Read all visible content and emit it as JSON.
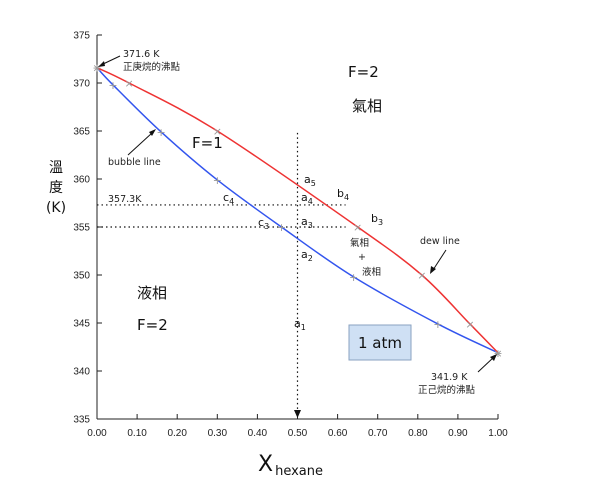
{
  "chart_data": {
    "type": "line",
    "xlabel": "X",
    "xlabel_sub": "hexane",
    "ylabel": [
      "溫",
      "度",
      "(K)"
    ],
    "xlim": [
      0,
      1
    ],
    "ylim": [
      335,
      375
    ],
    "x_ticks": [
      "0.00",
      "0.10",
      "0.20",
      "0.30",
      "0.40",
      "0.50",
      "0.60",
      "0.70",
      "0.80",
      "0.90",
      "1.00"
    ],
    "y_ticks": [
      "335",
      "340",
      "345",
      "350",
      "355",
      "360",
      "365",
      "370",
      "375"
    ],
    "series": [
      {
        "name": "bubble line",
        "color": "#3355ee",
        "x": [
          0.0,
          0.04,
          0.16,
          0.3,
          0.46,
          0.64,
          0.85,
          1.0
        ],
        "y": [
          371.6,
          369.8,
          364.9,
          359.9,
          355.0,
          349.8,
          344.9,
          341.9
        ],
        "marker": "+"
      },
      {
        "name": "dew line",
        "color": "#ee3333",
        "x": [
          0.0,
          0.08,
          0.3,
          0.65,
          0.81,
          0.93,
          1.0
        ],
        "y": [
          371.6,
          370.0,
          365.0,
          355.0,
          350.0,
          344.9,
          341.9
        ],
        "marker": "x"
      }
    ],
    "annotations": {
      "top_point": [
        "371.6 K",
        "正庚烷的沸點"
      ],
      "bottom_point": [
        "341.9 K",
        "正己烷的沸點"
      ],
      "bubble_label": "bubble line",
      "dew_label": "dew line",
      "vapor_region": "氣相",
      "vapor_f": "F=2",
      "mid_region_f": "F=1",
      "liquid_region": "液相",
      "liquid_f": "F=2",
      "two_phase": [
        "氣相",
        "+",
        "液相"
      ],
      "pressure_box": "1 atm",
      "ref_temp": "357.3K",
      "points": {
        "a1": {
          "base": "a",
          "sub": "1"
        },
        "a2": {
          "base": "a",
          "sub": "2"
        },
        "a3": {
          "base": "a",
          "sub": "3"
        },
        "a4": {
          "base": "a",
          "sub": "4"
        },
        "a5": {
          "base": "a",
          "sub": "5"
        },
        "b3": {
          "base": "b",
          "sub": "3"
        },
        "b4": {
          "base": "b",
          "sub": "4"
        },
        "c3": {
          "base": "c",
          "sub": "3"
        },
        "c4": {
          "base": "c",
          "sub": "4"
        }
      }
    },
    "guides": {
      "vertical_x": 0.5,
      "horizontal_y": [
        357.3,
        355.0
      ],
      "horizontal_extent_x": [
        0.5,
        0.62
      ]
    },
    "colors": {
      "axis": "#222222",
      "guide": "#111111",
      "pressure_fill": "#cfe0f4",
      "pressure_stroke": "#8aa2c0",
      "marker": "#999999"
    }
  }
}
